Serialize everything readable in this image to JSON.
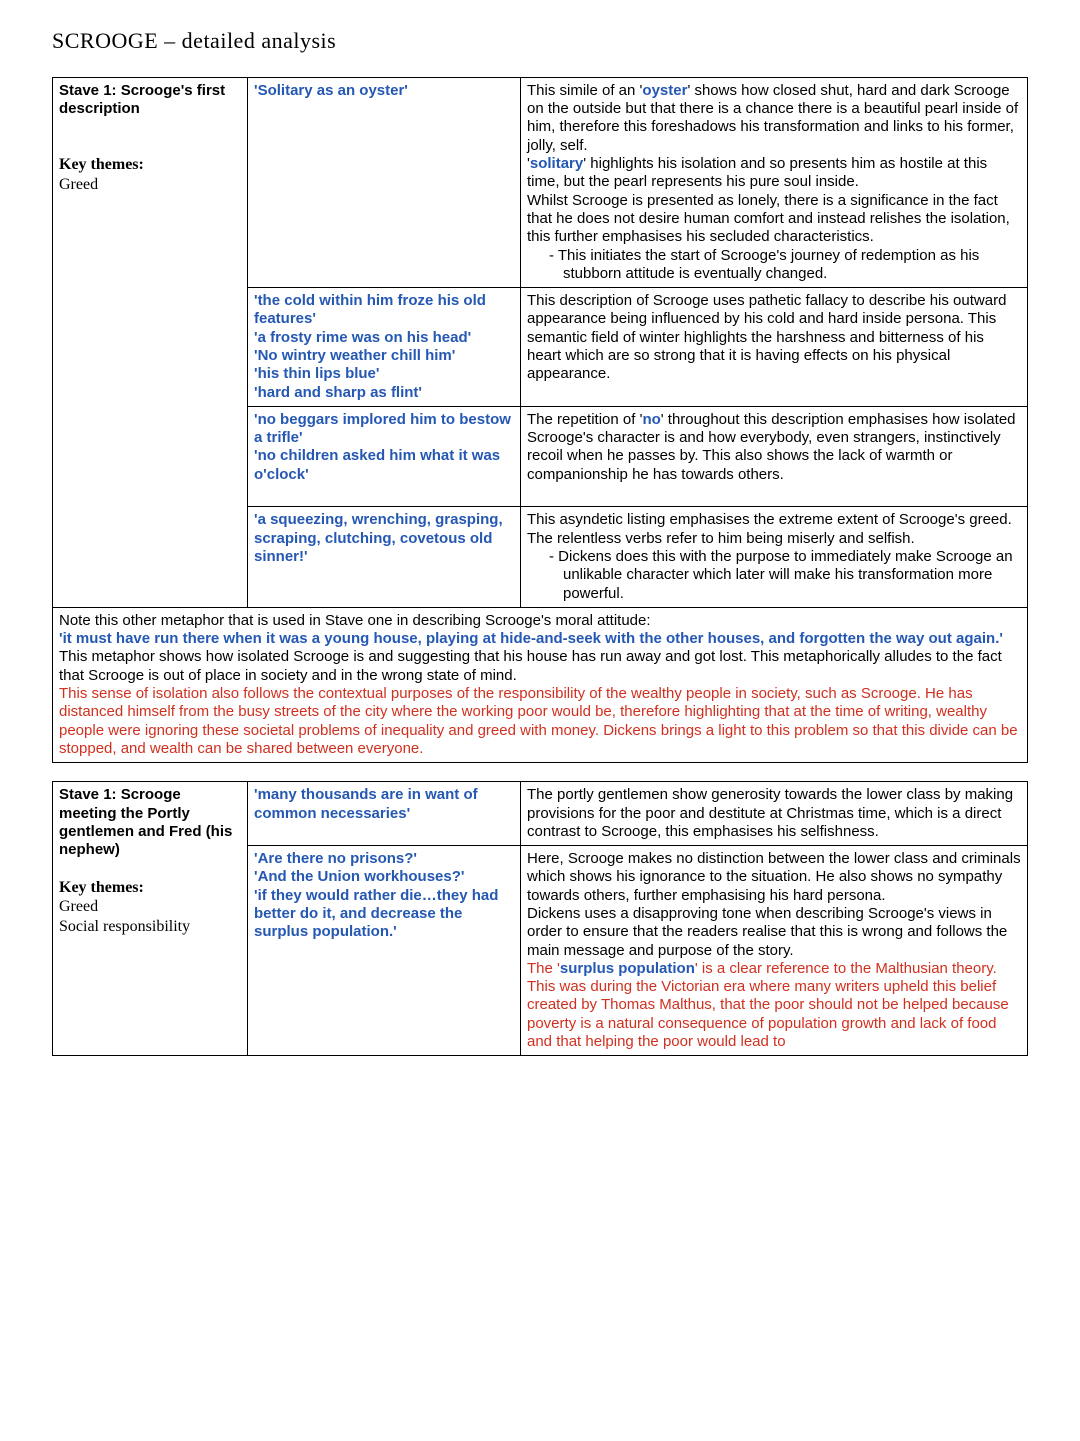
{
  "title": "SCROOGE – detailed analysis",
  "table1": {
    "leftTitle": "Stave 1: Scrooge's first description",
    "keyThemesLabel": "Key themes:",
    "keyThemes": "Greed",
    "r1q": "'Solitary as an oyster'",
    "r1a_p1a": "This simile of an '",
    "r1a_p1b": "oyster",
    "r1a_p1c": "' shows how closed shut, hard and dark Scrooge on the outside but that there is a chance there is a beautiful pearl inside of him, therefore this foreshadows his transformation and links to his former, jolly, self.",
    "r1a_p2a": "'",
    "r1a_p2b": "solitary",
    "r1a_p2c": "' highlights his isolation and so presents him as hostile at this time, but the pearl represents his pure soul inside.",
    "r1a_p3": "Whilst Scrooge is presented as lonely, there is a significance in the fact that he does not desire human comfort and instead relishes the isolation, this further emphasises his secluded characteristics.",
    "r1a_bullet": "-   This initiates the start of Scrooge's journey of redemption as his stubborn attitude is eventually changed.",
    "r2q1": "'the cold within him froze his old features'",
    "r2q2": "'a frosty rime was on his head'",
    "r2q3": "'No wintry weather chill him'",
    "r2q4": "'his thin lips blue'",
    "r2q5": "'hard and sharp as flint'",
    "r2a": "This description of Scrooge uses pathetic fallacy to describe his outward appearance being influenced by his cold and hard inside persona. This semantic field of winter highlights the harshness and bitterness of his heart which are so strong that it is having effects on his physical appearance.",
    "r3q1": "'no beggars implored him to bestow a trifle'",
    "r3q2": "'no children asked him what it was o'clock'",
    "r3a_a": "The repetition of '",
    "r3a_b": "no",
    "r3a_c": "' throughout this description emphasises how isolated Scrooge's character is and how everybody, even strangers, instinctively recoil when he passes by. This also shows the lack of warmth or companionship he has towards others.",
    "r4q": "'a squeezing, wrenching, grasping, scraping, clutching, covetous old sinner!'",
    "r4a_p1": "This asyndetic listing emphasises the extreme extent of Scrooge's greed. The relentless verbs refer to him being miserly and selfish.",
    "r4a_bullet": "-   Dickens does this with the purpose to immediately make Scrooge an unlikable character which later will make his transformation more powerful.",
    "note_intro": "Note this other metaphor that is used in Stave one in describing Scrooge's moral attitude:",
    "note_quote": "'it must have run there when it was a young house, playing at hide-and-seek with the other houses, and forgotten the way out again.'",
    "note_p1": "This metaphor shows how isolated Scrooge is and suggesting that his house has run away and got lost. This metaphorically alludes to the fact that Scrooge is out of place in society and in the wrong state of mind.",
    "note_p2": "This sense of isolation also follows the contextual purposes of the responsibility of the wealthy people in society, such as Scrooge. He has distanced himself from the busy streets of the city where the working poor would be, therefore highlighting that at the time of writing, wealthy people were ignoring these societal problems of inequality and greed with money. Dickens brings a light to this problem so that this divide can be stopped, and wealth can be shared between everyone."
  },
  "table2": {
    "leftTitle": "Stave 1: Scrooge meeting the Portly gentlemen and Fred (his nephew)",
    "keyThemesLabel": "Key themes:",
    "keyThemes1": "Greed",
    "keyThemes2": "Social responsibility",
    "r1q": "'many thousands are in want of common necessaries'",
    "r1a": "The portly gentlemen show generosity towards the lower class by making provisions for the poor and destitute at Christmas time, which is a direct contrast to Scrooge, this emphasises his selfishness.",
    "r2q1": "'Are there no prisons?'",
    "r2q2": "'And the Union workhouses?'",
    "r2q3": "'if they would rather die…they had better do it, and decrease the surplus population.'",
    "r2a_p1": "Here, Scrooge makes no distinction between the lower class and criminals which shows his ignorance to the situation. He also shows no sympathy towards others, further emphasising his hard persona.",
    "r2a_p2": "Dickens uses a disapproving tone when describing Scrooge's views in order to ensure that the readers realise that this is wrong and follows the main message and purpose of the story.",
    "r2a_p3a": "The '",
    "r2a_p3b": "surplus population",
    "r2a_p3c": "' is a clear reference to the Malthusian theory. This was during the Victorian era where many writers upheld this belief created by Thomas Malthus, that the poor should not be helped because poverty is a natural consequence of population growth and lack of food and that helping the poor would lead to"
  }
}
